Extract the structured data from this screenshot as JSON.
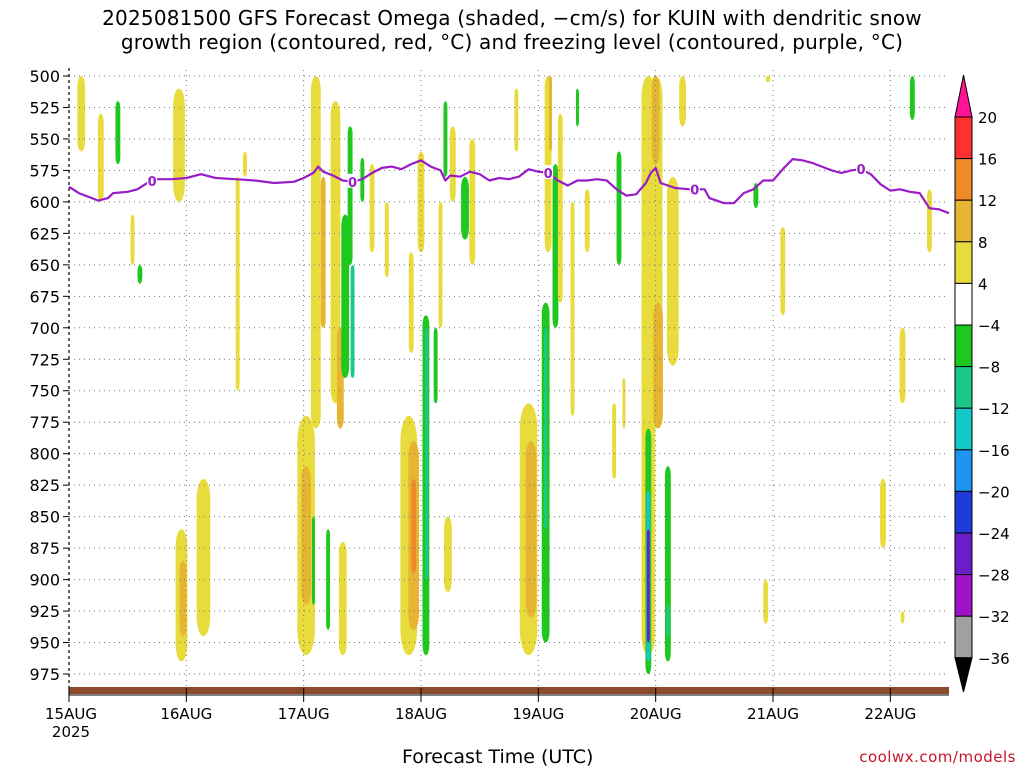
{
  "header": {
    "title_line1": "2025081500 GFS Forecast Omega (shaded, −cm/s) for KUIN with dendritic snow",
    "title_line2": "growth region (contoured, red, °C) and freezing level (contoured, purple, °C)"
  },
  "footer": {
    "xlabel": "Forecast Time (UTC)",
    "credit": "coolwx.com/models"
  },
  "colors": {
    "background": "#ffffff",
    "grid": "#888888",
    "freezing_level": "#9a1cc8",
    "ground": "#8b4a2b",
    "credit": "#c8142a"
  },
  "chart_data": {
    "type": "heatmap",
    "title": "2025081500 GFS Forecast Omega (shaded, −cm/s) for KUIN with dendritic snow growth region (contoured, red, °C) and freezing level (contoured, purple, °C)",
    "xlabel": "Forecast Time (UTC)",
    "ylabel": "",
    "x_range_hours": [
      0,
      180
    ],
    "x_ticks": [
      {
        "hour": 0,
        "label": "15AUG",
        "sublabel": "2025"
      },
      {
        "hour": 24,
        "label": "16AUG"
      },
      {
        "hour": 48,
        "label": "17AUG"
      },
      {
        "hour": 72,
        "label": "18AUG"
      },
      {
        "hour": 96,
        "label": "19AUG"
      },
      {
        "hour": 120,
        "label": "20AUG"
      },
      {
        "hour": 144,
        "label": "21AUG"
      },
      {
        "hour": 168,
        "label": "22AUG"
      }
    ],
    "y_axis": "pressure (hPa), inverted",
    "y_range": [
      500,
      990
    ],
    "y_ticks": [
      500,
      525,
      550,
      575,
      600,
      625,
      650,
      675,
      700,
      725,
      750,
      775,
      800,
      825,
      850,
      875,
      900,
      925,
      950,
      975
    ],
    "grid": true,
    "colorbar": {
      "levels": [
        20,
        16,
        12,
        8,
        4,
        -4,
        -8,
        -12,
        -16,
        -20,
        -24,
        -28,
        -32,
        -36
      ],
      "colors": [
        "#ff1493",
        "#ff3030",
        "#f08a28",
        "#e6b632",
        "#e8dc3c",
        "#ffffff",
        "#1ec81e",
        "#1cc888",
        "#14c8c8",
        "#1e96f0",
        "#1e3cdc",
        "#6a1ec8",
        "#a012c8",
        "#a0a0a0",
        "#000000"
      ]
    },
    "freezing_level": {
      "label": "0",
      "points": [
        [
          0,
          588
        ],
        [
          2,
          593
        ],
        [
          4,
          596
        ],
        [
          6,
          599
        ],
        [
          8,
          597
        ],
        [
          9,
          593
        ],
        [
          12,
          592
        ],
        [
          14,
          590
        ],
        [
          16,
          585
        ],
        [
          18,
          582
        ],
        [
          21,
          582
        ],
        [
          24,
          581
        ],
        [
          27,
          578
        ],
        [
          30,
          581
        ],
        [
          34,
          582
        ],
        [
          38,
          583
        ],
        [
          42,
          585
        ],
        [
          46,
          584
        ],
        [
          48,
          581
        ],
        [
          50,
          577
        ],
        [
          51,
          572
        ],
        [
          52,
          576
        ],
        [
          54,
          579
        ],
        [
          56,
          583
        ],
        [
          58,
          584
        ],
        [
          60,
          582
        ],
        [
          62,
          577
        ],
        [
          64,
          573
        ],
        [
          66,
          572
        ],
        [
          68,
          574
        ],
        [
          70,
          570
        ],
        [
          72,
          567
        ],
        [
          74,
          572
        ],
        [
          76,
          575
        ],
        [
          77,
          583
        ],
        [
          78,
          579
        ],
        [
          80,
          580
        ],
        [
          82,
          576
        ],
        [
          84,
          578
        ],
        [
          86,
          583
        ],
        [
          88,
          581
        ],
        [
          90,
          582
        ],
        [
          92,
          580
        ],
        [
          94,
          574
        ],
        [
          96,
          576
        ],
        [
          98,
          577
        ],
        [
          100,
          583
        ],
        [
          102,
          587
        ],
        [
          104,
          583
        ],
        [
          106,
          583
        ],
        [
          108,
          582
        ],
        [
          110,
          583
        ],
        [
          112,
          590
        ],
        [
          114,
          595
        ],
        [
          116,
          594
        ],
        [
          118,
          585
        ],
        [
          119,
          577
        ],
        [
          120,
          573
        ],
        [
          121,
          585
        ],
        [
          124,
          589
        ],
        [
          127,
          590
        ],
        [
          130,
          590
        ],
        [
          131,
          597
        ],
        [
          134,
          601
        ],
        [
          136,
          601
        ],
        [
          138,
          593
        ],
        [
          140,
          590
        ],
        [
          142,
          583
        ],
        [
          144,
          583
        ],
        [
          146,
          574
        ],
        [
          148,
          566
        ],
        [
          150,
          567
        ],
        [
          152,
          569
        ],
        [
          154,
          572
        ],
        [
          156,
          575
        ],
        [
          158,
          577
        ],
        [
          160,
          575
        ],
        [
          162,
          574
        ],
        [
          164,
          578
        ],
        [
          166,
          586
        ],
        [
          168,
          591
        ],
        [
          170,
          590
        ],
        [
          172,
          592
        ],
        [
          174,
          593
        ],
        [
          176,
          605
        ],
        [
          178,
          606
        ],
        [
          180,
          609
        ]
      ],
      "label_hours": [
        17,
        58,
        98,
        128,
        162
      ]
    },
    "omega_regions": [
      {
        "hour": 2.5,
        "p_top": 500,
        "p_bot": 560,
        "half_width_h": 0.8,
        "value": 5
      },
      {
        "hour": 6.5,
        "p_top": 530,
        "p_bot": 600,
        "half_width_h": 0.6,
        "value": 5
      },
      {
        "hour": 10,
        "p_top": 520,
        "p_bot": 570,
        "half_width_h": 0.5,
        "value": -6
      },
      {
        "hour": 13,
        "p_top": 610,
        "p_bot": 650,
        "half_width_h": 0.4,
        "value": 5
      },
      {
        "hour": 14.5,
        "p_top": 650,
        "p_bot": 665,
        "half_width_h": 0.5,
        "value": -6
      },
      {
        "hour": 22.5,
        "p_top": 510,
        "p_bot": 600,
        "half_width_h": 1.2,
        "value": 6
      },
      {
        "hour": 23,
        "p_top": 860,
        "p_bot": 965,
        "half_width_h": 1.2,
        "value": 6
      },
      {
        "hour": 23.3,
        "p_top": 885,
        "p_bot": 945,
        "half_width_h": 0.7,
        "value": 10
      },
      {
        "hour": 27.5,
        "p_top": 820,
        "p_bot": 945,
        "half_width_h": 1.4,
        "value": 5
      },
      {
        "hour": 34.5,
        "p_top": 580,
        "p_bot": 750,
        "half_width_h": 0.4,
        "value": 5
      },
      {
        "hour": 36,
        "p_top": 560,
        "p_bot": 580,
        "half_width_h": 0.4,
        "value": 5
      },
      {
        "hour": 48.5,
        "p_top": 770,
        "p_bot": 960,
        "half_width_h": 1.8,
        "value": 6
      },
      {
        "hour": 48.5,
        "p_top": 810,
        "p_bot": 920,
        "half_width_h": 1.0,
        "value": 10
      },
      {
        "hour": 50.5,
        "p_top": 500,
        "p_bot": 780,
        "half_width_h": 1.0,
        "value": 6
      },
      {
        "hour": 50,
        "p_top": 850,
        "p_bot": 920,
        "half_width_h": 0.3,
        "value": -6
      },
      {
        "hour": 52,
        "p_top": 580,
        "p_bot": 700,
        "half_width_h": 0.5,
        "value": 10
      },
      {
        "hour": 53,
        "p_top": 860,
        "p_bot": 940,
        "half_width_h": 0.4,
        "value": -6
      },
      {
        "hour": 54.5,
        "p_top": 520,
        "p_bot": 760,
        "half_width_h": 1.0,
        "value": 5
      },
      {
        "hour": 55.5,
        "p_top": 700,
        "p_bot": 780,
        "half_width_h": 0.7,
        "value": 10
      },
      {
        "hour": 56,
        "p_top": 870,
        "p_bot": 960,
        "half_width_h": 0.8,
        "value": 5
      },
      {
        "hour": 56.5,
        "p_top": 610,
        "p_bot": 740,
        "half_width_h": 0.8,
        "value": -6
      },
      {
        "hour": 57.5,
        "p_top": 540,
        "p_bot": 650,
        "half_width_h": 0.5,
        "value": -6
      },
      {
        "hour": 58,
        "p_top": 650,
        "p_bot": 740,
        "half_width_h": 0.4,
        "value": -10
      },
      {
        "hour": 60,
        "p_top": 565,
        "p_bot": 600,
        "half_width_h": 0.4,
        "value": -6
      },
      {
        "hour": 62,
        "p_top": 570,
        "p_bot": 640,
        "half_width_h": 0.5,
        "value": 5
      },
      {
        "hour": 65,
        "p_top": 600,
        "p_bot": 660,
        "half_width_h": 0.4,
        "value": 5
      },
      {
        "hour": 69.5,
        "p_top": 770,
        "p_bot": 960,
        "half_width_h": 1.7,
        "value": 6
      },
      {
        "hour": 70.5,
        "p_top": 790,
        "p_bot": 940,
        "half_width_h": 1.1,
        "value": 10
      },
      {
        "hour": 70.5,
        "p_top": 820,
        "p_bot": 895,
        "half_width_h": 0.5,
        "value": 15
      },
      {
        "hour": 70,
        "p_top": 640,
        "p_bot": 720,
        "half_width_h": 0.5,
        "value": 5
      },
      {
        "hour": 72,
        "p_top": 560,
        "p_bot": 640,
        "half_width_h": 0.7,
        "value": 5
      },
      {
        "hour": 73,
        "p_top": 690,
        "p_bot": 960,
        "half_width_h": 0.7,
        "value": -6
      },
      {
        "hour": 73.2,
        "p_top": 700,
        "p_bot": 900,
        "half_width_h": 0.3,
        "value": -10
      },
      {
        "hour": 75,
        "p_top": 700,
        "p_bot": 760,
        "half_width_h": 0.4,
        "value": -6
      },
      {
        "hour": 76,
        "p_top": 600,
        "p_bot": 700,
        "half_width_h": 0.4,
        "value": 5
      },
      {
        "hour": 77,
        "p_top": 520,
        "p_bot": 580,
        "half_width_h": 0.4,
        "value": -6
      },
      {
        "hour": 77.5,
        "p_top": 850,
        "p_bot": 910,
        "half_width_h": 0.8,
        "value": 5
      },
      {
        "hour": 78.5,
        "p_top": 540,
        "p_bot": 600,
        "half_width_h": 0.6,
        "value": 5
      },
      {
        "hour": 81,
        "p_top": 580,
        "p_bot": 630,
        "half_width_h": 0.8,
        "value": -6
      },
      {
        "hour": 82.5,
        "p_top": 550,
        "p_bot": 650,
        "half_width_h": 0.6,
        "value": 5
      },
      {
        "hour": 91.5,
        "p_top": 510,
        "p_bot": 560,
        "half_width_h": 0.4,
        "value": 5
      },
      {
        "hour": 94,
        "p_top": 760,
        "p_bot": 960,
        "half_width_h": 1.8,
        "value": 6
      },
      {
        "hour": 94.5,
        "p_top": 790,
        "p_bot": 930,
        "half_width_h": 1.1,
        "value": 10
      },
      {
        "hour": 97.5,
        "p_top": 680,
        "p_bot": 950,
        "half_width_h": 0.8,
        "value": -6
      },
      {
        "hour": 97.5,
        "p_top": 700,
        "p_bot": 860,
        "half_width_h": 0.3,
        "value": -10
      },
      {
        "hour": 98,
        "p_top": 500,
        "p_bot": 640,
        "half_width_h": 0.7,
        "value": 6
      },
      {
        "hour": 98.5,
        "p_top": 500,
        "p_bot": 560,
        "half_width_h": 0.3,
        "value": 10
      },
      {
        "hour": 99.5,
        "p_top": 570,
        "p_bot": 700,
        "half_width_h": 0.6,
        "value": -6
      },
      {
        "hour": 100.5,
        "p_top": 530,
        "p_bot": 680,
        "half_width_h": 0.5,
        "value": 5
      },
      {
        "hour": 103,
        "p_top": 600,
        "p_bot": 770,
        "half_width_h": 0.4,
        "value": 5
      },
      {
        "hour": 104,
        "p_top": 510,
        "p_bot": 540,
        "half_width_h": 0.3,
        "value": -6
      },
      {
        "hour": 106,
        "p_top": 590,
        "p_bot": 640,
        "half_width_h": 0.5,
        "value": 5
      },
      {
        "hour": 111.5,
        "p_top": 760,
        "p_bot": 820,
        "half_width_h": 0.4,
        "value": 5
      },
      {
        "hour": 112.5,
        "p_top": 560,
        "p_bot": 650,
        "half_width_h": 0.5,
        "value": -6
      },
      {
        "hour": 113.5,
        "p_top": 740,
        "p_bot": 780,
        "half_width_h": 0.3,
        "value": 5
      },
      {
        "hour": 118.5,
        "p_top": 500,
        "p_bot": 960,
        "half_width_h": 1.4,
        "value": 6
      },
      {
        "hour": 118.5,
        "p_top": 780,
        "p_bot": 975,
        "half_width_h": 0.6,
        "value": -6
      },
      {
        "hour": 118.5,
        "p_top": 830,
        "p_bot": 965,
        "half_width_h": 0.4,
        "value": -14
      },
      {
        "hour": 118.5,
        "p_top": 860,
        "p_bot": 950,
        "half_width_h": 0.3,
        "value": -24
      },
      {
        "hour": 120,
        "p_top": 500,
        "p_bot": 780,
        "half_width_h": 1.4,
        "value": 6
      },
      {
        "hour": 120,
        "p_top": 500,
        "p_bot": 570,
        "half_width_h": 0.8,
        "value": 10
      },
      {
        "hour": 120.5,
        "p_top": 680,
        "p_bot": 780,
        "half_width_h": 1.0,
        "value": 10
      },
      {
        "hour": 123.5,
        "p_top": 580,
        "p_bot": 730,
        "half_width_h": 1.2,
        "value": 6
      },
      {
        "hour": 125.5,
        "p_top": 500,
        "p_bot": 540,
        "half_width_h": 0.7,
        "value": 5
      },
      {
        "hour": 122.5,
        "p_top": 810,
        "p_bot": 965,
        "half_width_h": 0.6,
        "value": -6
      },
      {
        "hour": 122.5,
        "p_top": 920,
        "p_bot": 945,
        "half_width_h": 0.3,
        "value": -10
      },
      {
        "hour": 143,
        "p_top": 500,
        "p_bot": 505,
        "half_width_h": 0.5,
        "value": 5
      },
      {
        "hour": 140.5,
        "p_top": 585,
        "p_bot": 605,
        "half_width_h": 0.5,
        "value": -6
      },
      {
        "hour": 146,
        "p_top": 620,
        "p_bot": 690,
        "half_width_h": 0.5,
        "value": 5
      },
      {
        "hour": 142.5,
        "p_top": 900,
        "p_bot": 935,
        "half_width_h": 0.5,
        "value": 5
      },
      {
        "hour": 166.5,
        "p_top": 820,
        "p_bot": 875,
        "half_width_h": 0.6,
        "value": 5
      },
      {
        "hour": 170.5,
        "p_top": 700,
        "p_bot": 760,
        "half_width_h": 0.6,
        "value": 5
      },
      {
        "hour": 170.5,
        "p_top": 925,
        "p_bot": 935,
        "half_width_h": 0.4,
        "value": 5
      },
      {
        "hour": 172.5,
        "p_top": 500,
        "p_bot": 535,
        "half_width_h": 0.5,
        "value": -6
      },
      {
        "hour": 176,
        "p_top": 590,
        "p_bot": 640,
        "half_width_h": 0.5,
        "value": 5
      }
    ]
  }
}
